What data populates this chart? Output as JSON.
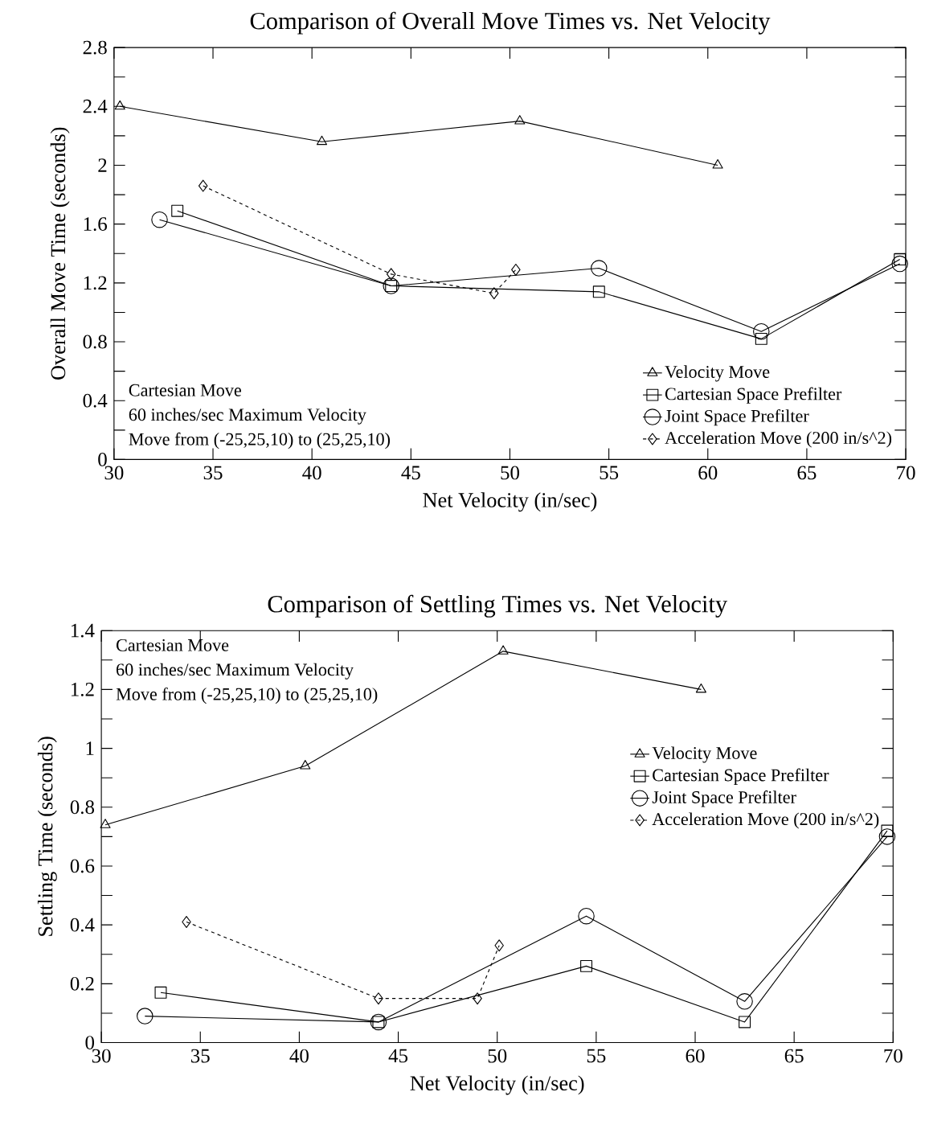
{
  "chart_data": [
    {
      "type": "line",
      "title": "Comparison of Overall Move Times vs. Net Velocity",
      "xlabel": "Net Velocity (in/sec)",
      "ylabel": "Overall Move Time (seconds)",
      "xlim": [
        30,
        70
      ],
      "xticks": [
        30,
        35,
        40,
        45,
        50,
        55,
        60,
        65,
        70
      ],
      "ylim": [
        0,
        2.8
      ],
      "yticks": [
        0,
        0.4,
        0.8,
        1.2,
        1.6,
        2,
        2.4,
        2.8
      ],
      "legend": "bottom right",
      "annotations": [
        "Cartesian Move",
        "60 inches/sec Maximum Velocity",
        "Move from (-25,25,10) to (25,25,10)"
      ],
      "series": [
        {
          "name": "Velocity Move",
          "color": "#000000",
          "marker": "triangle",
          "line_style": "solid",
          "x": [
            30.3,
            40.5,
            50.5,
            60.5
          ],
          "values": [
            2.4,
            2.16,
            2.3,
            2.0
          ]
        },
        {
          "name": "Cartesian Space Prefilter",
          "color": "#000000",
          "marker": "square",
          "line_style": "solid",
          "x": [
            33.2,
            44,
            54.5,
            62.7,
            69.7
          ],
          "values": [
            1.69,
            1.18,
            1.14,
            0.82,
            1.36
          ]
        },
        {
          "name": "Joint Space Prefilter",
          "color": "#000000",
          "marker": "circle",
          "line_style": "solid",
          "x": [
            32.3,
            44,
            54.5,
            62.7,
            69.7
          ],
          "values": [
            1.63,
            1.18,
            1.3,
            0.87,
            1.33
          ]
        },
        {
          "name": "Acceleration Move (200 in/s^2)",
          "color": "#000000",
          "marker": "diamond",
          "line_style": "dashed",
          "x": [
            34.5,
            44,
            49.2,
            50.3
          ],
          "values": [
            1.86,
            1.26,
            1.13,
            1.29
          ]
        }
      ]
    },
    {
      "type": "line",
      "title": "Comparison of Settling Times vs. Net Velocity",
      "xlabel": "Net Velocity (in/sec)",
      "ylabel": "Settling Time (seconds)",
      "xlim": [
        30,
        70
      ],
      "xticks": [
        30,
        35,
        40,
        45,
        50,
        55,
        60,
        65,
        70
      ],
      "ylim": [
        0,
        1.4
      ],
      "yticks": [
        0,
        0.2,
        0.4,
        0.6,
        0.8,
        1,
        1.2,
        1.4
      ],
      "legend": "right",
      "annotations": [
        "Cartesian Move",
        "60 inches/sec Maximum Velocity",
        "Move from (-25,25,10) to (25,25,10)"
      ],
      "series": [
        {
          "name": "Velocity Move",
          "color": "#000000",
          "marker": "triangle",
          "line_style": "solid",
          "x": [
            30.2,
            40.3,
            50.3,
            60.3
          ],
          "values": [
            0.74,
            0.94,
            1.33,
            1.2
          ]
        },
        {
          "name": "Cartesian Space Prefilter",
          "color": "#000000",
          "marker": "square",
          "line_style": "solid",
          "x": [
            33,
            44,
            54.5,
            62.5,
            69.7
          ],
          "values": [
            0.17,
            0.07,
            0.26,
            0.07,
            0.72
          ]
        },
        {
          "name": "Joint Space Prefilter",
          "color": "#000000",
          "marker": "circle",
          "line_style": "solid",
          "x": [
            32.2,
            44,
            54.5,
            62.5,
            69.7
          ],
          "values": [
            0.09,
            0.07,
            0.43,
            0.14,
            0.7
          ]
        },
        {
          "name": "Acceleration Move (200 in/s^2)",
          "color": "#000000",
          "marker": "diamond",
          "line_style": "dashed",
          "x": [
            34.3,
            44,
            49,
            50.1
          ],
          "values": [
            0.41,
            0.15,
            0.15,
            0.33
          ]
        }
      ]
    }
  ]
}
